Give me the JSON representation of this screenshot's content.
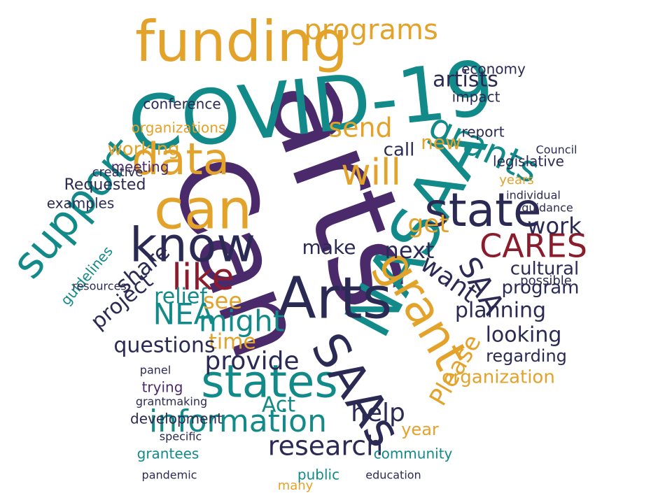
{
  "words": [
    {
      "text": "arts",
      "color": "#4b2a6b"
    },
    {
      "text": "Can",
      "color": "#4b2a6b"
    },
    {
      "text": "COVID-19",
      "color": "#138a8a"
    },
    {
      "text": "funding",
      "color": "#e3a22a"
    },
    {
      "text": "NASAA",
      "color": "#138a8a"
    },
    {
      "text": "Arts",
      "color": "#2b2a55"
    },
    {
      "text": "can",
      "color": "#e3a22a"
    },
    {
      "text": "states",
      "color": "#138a8a"
    },
    {
      "text": "SAAs",
      "color": "#2b2a55"
    },
    {
      "text": "grant",
      "color": "#e3a22a"
    },
    {
      "text": "know",
      "color": "#2b2a55"
    },
    {
      "text": "state",
      "color": "#2b2a55"
    },
    {
      "text": "support",
      "color": "#138a8a"
    },
    {
      "text": "data",
      "color": "#e3a22a"
    },
    {
      "text": "like",
      "color": "#8a1c2c"
    },
    {
      "text": "CARES",
      "color": "#8a1c2c"
    },
    {
      "text": "grants",
      "color": "#138a8a"
    },
    {
      "text": "will",
      "color": "#e3a22a"
    },
    {
      "text": "programs",
      "color": "#e3a22a"
    },
    {
      "text": "information",
      "color": "#138a8a"
    },
    {
      "text": "might",
      "color": "#138a8a"
    },
    {
      "text": "NEA",
      "color": "#138a8a"
    },
    {
      "text": "SAA",
      "color": "#2b2a55"
    },
    {
      "text": "get",
      "color": "#e3a22a"
    },
    {
      "text": "next",
      "color": "#2b2a55"
    },
    {
      "text": "want",
      "color": "#2b2a55"
    },
    {
      "text": "provide",
      "color": "#2b2a55"
    },
    {
      "text": "help",
      "color": "#2b2a55"
    },
    {
      "text": "work",
      "color": "#2b2a55"
    },
    {
      "text": "share",
      "color": "#2b2a55"
    },
    {
      "text": "project",
      "color": "#2b2a55"
    },
    {
      "text": "send",
      "color": "#e3a22a"
    },
    {
      "text": "artists",
      "color": "#2b2a55"
    },
    {
      "text": "see",
      "color": "#e3a22a"
    },
    {
      "text": "time",
      "color": "#e3a22a"
    },
    {
      "text": "Act",
      "color": "#138a8a"
    },
    {
      "text": "Please",
      "color": "#e3a22a"
    },
    {
      "text": "research",
      "color": "#2b2a55"
    },
    {
      "text": "questions",
      "color": "#2b2a55"
    },
    {
      "text": "planning",
      "color": "#2b2a55"
    },
    {
      "text": "looking",
      "color": "#2b2a55"
    },
    {
      "text": "relief",
      "color": "#138a8a"
    },
    {
      "text": "program",
      "color": "#2b2a55"
    },
    {
      "text": "organization",
      "color": "#e3a22a"
    },
    {
      "text": "call",
      "color": "#2b2a55"
    },
    {
      "text": "new",
      "color": "#e3a22a"
    },
    {
      "text": "make",
      "color": "#2b2a55"
    },
    {
      "text": "cultural",
      "color": "#2b2a55"
    },
    {
      "text": "working",
      "color": "#e3a22a"
    },
    {
      "text": "regarding",
      "color": "#2b2a55"
    },
    {
      "text": "Requested",
      "color": "#2b2a55"
    },
    {
      "text": "examples",
      "color": "#2b2a55"
    },
    {
      "text": "legislative",
      "color": "#2b2a55"
    },
    {
      "text": "economy",
      "color": "#2b2a55"
    },
    {
      "text": "conference",
      "color": "#2b2a55"
    },
    {
      "text": "impact",
      "color": "#2b2a55"
    },
    {
      "text": "organizations",
      "color": "#e3a22a"
    },
    {
      "text": "meeting",
      "color": "#4b2a6b"
    },
    {
      "text": "creative",
      "color": "#2b2a55"
    },
    {
      "text": "guidelines",
      "color": "#138a8a"
    },
    {
      "text": "resources",
      "color": "#2b2a55"
    },
    {
      "text": "panel",
      "color": "#2b2a55"
    },
    {
      "text": "trying",
      "color": "#4b2a6b"
    },
    {
      "text": "grantmaking",
      "color": "#2b2a55"
    },
    {
      "text": "development",
      "color": "#2b2a55"
    },
    {
      "text": "specific",
      "color": "#2b2a55"
    },
    {
      "text": "grantees",
      "color": "#138a8a"
    },
    {
      "text": "pandemic",
      "color": "#2b2a55"
    },
    {
      "text": "year",
      "color": "#e3a22a"
    },
    {
      "text": "community",
      "color": "#138a8a"
    },
    {
      "text": "public",
      "color": "#138a8a"
    },
    {
      "text": "many",
      "color": "#e3a22a"
    },
    {
      "text": "education",
      "color": "#2b2a55"
    },
    {
      "text": "possible",
      "color": "#2b2a55"
    },
    {
      "text": "individual",
      "color": "#2b2a55"
    },
    {
      "text": "guidance",
      "color": "#2b2a55"
    },
    {
      "text": "Council",
      "color": "#2b2a55"
    },
    {
      "text": "years",
      "color": "#e3a22a"
    },
    {
      "text": "report",
      "color": "#2b2a55"
    }
  ]
}
